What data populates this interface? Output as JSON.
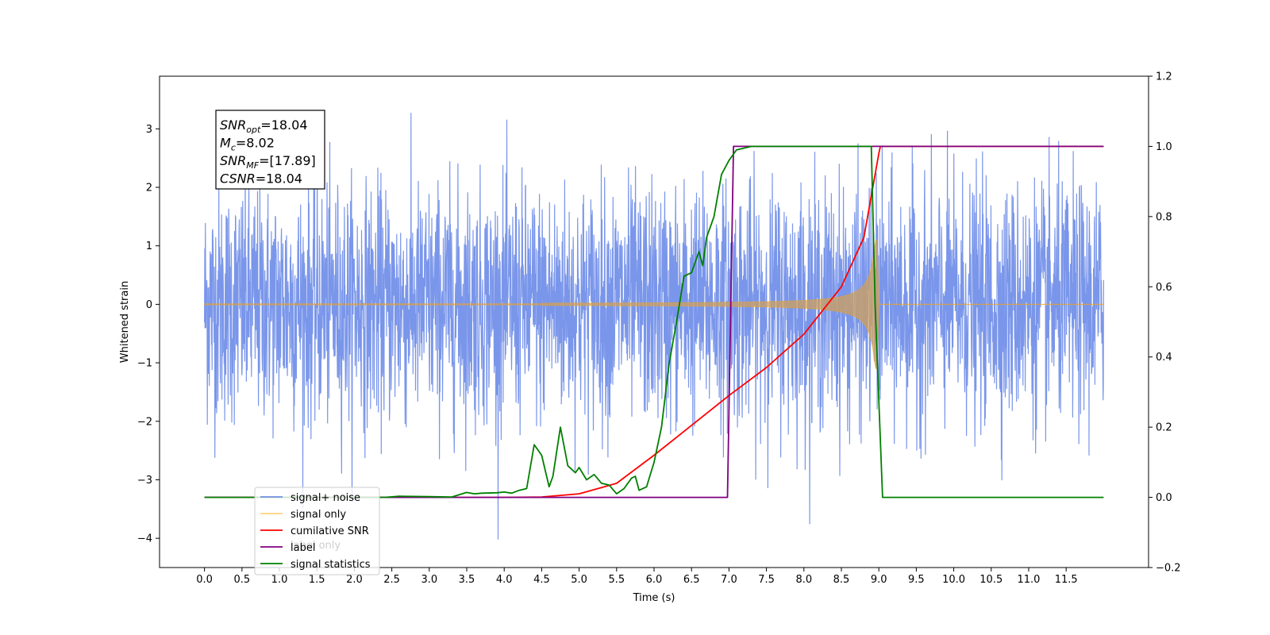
{
  "chart_data": {
    "type": "line",
    "xlabel": "Time (s)",
    "ylabel": "Whitened strain",
    "xlim": [
      -0.6,
      12.6
    ],
    "ylim": [
      -4.5,
      3.9
    ],
    "y2lim": [
      -0.2,
      1.2
    ],
    "x_ticks": [
      0.0,
      0.5,
      1.0,
      1.5,
      2.0,
      2.5,
      3.0,
      3.5,
      4.0,
      4.5,
      5.0,
      5.5,
      6.0,
      6.5,
      7.0,
      7.5,
      8.0,
      8.5,
      9.0,
      9.5,
      10.0,
      10.5,
      11.0,
      11.5
    ],
    "x_tick_labels": [
      "0.0",
      "0.5",
      "1.0",
      "1.5",
      "2.0",
      "2.5",
      "3.0",
      "3.5",
      "4.0",
      "4.5",
      "5.0",
      "5.5",
      "6.0",
      "6.5",
      "7.0",
      "7.5",
      "8.0",
      "8.5",
      "9.0",
      "9.5",
      "10.0",
      "10.5",
      "11.0",
      "11.5"
    ],
    "y_ticks": [
      -4,
      -3,
      -2,
      -1,
      0,
      1,
      2,
      3
    ],
    "y_tick_labels": [
      "−4",
      "−3",
      "−2",
      "−1",
      "0",
      "1",
      "2",
      "3"
    ],
    "y2_ticks": [
      -0.2,
      0.0,
      0.2,
      0.4,
      0.6,
      0.8,
      1.0,
      1.2
    ],
    "y2_tick_labels": [
      "−0.2",
      "0.0",
      "0.2",
      "0.4",
      "0.6",
      "0.8",
      "1.0",
      "1.2"
    ],
    "annotation": {
      "lines": [
        {
          "sym": "SNR",
          "sub": "opt",
          "value": "=18.04"
        },
        {
          "sym": "M",
          "sub": "c",
          "value": "=8.02"
        },
        {
          "sym": "SNR",
          "sub": "MF",
          "value": "=[17.89]"
        },
        {
          "sym": "CSNR",
          "sub": "",
          "value": "=18.04"
        }
      ]
    },
    "legend": {
      "placement": "lower-left",
      "ghost_text": "label only",
      "entries": [
        {
          "label": "signal+ noise",
          "color": "#4169E1"
        },
        {
          "label": "signal only",
          "color": "#FFA500"
        },
        {
          "label": "cumilative SNR",
          "color": "#FF0000"
        },
        {
          "label": "label",
          "color": "#800080"
        },
        {
          "label": "signal statistics",
          "color": "#008000"
        }
      ]
    },
    "series": [
      {
        "name": "signal+ noise",
        "axis": "left",
        "color": "#4169E1",
        "x_range": [
          0.0,
          12.0
        ],
        "envelope": "random noise, std ~1.0, spikes to ±3.6"
      },
      {
        "name": "signal only",
        "axis": "left",
        "color": "#FFA500",
        "x_range": [
          0.0,
          12.0
        ],
        "description": "chirp, amplitude grows to ~1.1 at x=9.0 then 0"
      },
      {
        "name": "cumilative SNR",
        "axis": "right",
        "x": [
          0.0,
          4.0,
          4.5,
          5.0,
          5.5,
          6.0,
          6.5,
          7.0,
          7.5,
          8.0,
          8.5,
          8.8,
          9.0,
          9.02,
          12.0
        ],
        "y": [
          0.0,
          0.0,
          0.001,
          0.01,
          0.04,
          0.12,
          0.205,
          0.29,
          0.37,
          0.465,
          0.6,
          0.74,
          0.98,
          1.0,
          1.0
        ]
      },
      {
        "name": "label",
        "axis": "right",
        "x": [
          0.0,
          6.98,
          7.06,
          9.0,
          9.02,
          12.0
        ],
        "y": [
          0.0,
          0.0,
          1.0,
          1.0,
          1.0,
          1.0
        ]
      },
      {
        "name": "signal statistics",
        "axis": "right",
        "x": [
          0.0,
          2.4,
          2.6,
          3.0,
          3.3,
          3.5,
          3.6,
          3.7,
          3.9,
          4.0,
          4.1,
          4.2,
          4.3,
          4.4,
          4.5,
          4.6,
          4.65,
          4.75,
          4.85,
          4.95,
          5.0,
          5.1,
          5.2,
          5.3,
          5.4,
          5.5,
          5.6,
          5.7,
          5.75,
          5.8,
          5.9,
          6.0,
          6.1,
          6.2,
          6.3,
          6.4,
          6.5,
          6.6,
          6.65,
          6.7,
          6.8,
          6.9,
          7.0,
          7.1,
          7.2,
          7.3,
          7.5,
          8.0,
          8.9,
          8.95,
          9.05,
          12.0
        ],
        "y": [
          0.0,
          0.0,
          0.003,
          0.002,
          0.001,
          0.014,
          0.01,
          0.012,
          0.013,
          0.015,
          0.012,
          0.02,
          0.025,
          0.15,
          0.12,
          0.03,
          0.06,
          0.2,
          0.09,
          0.07,
          0.085,
          0.05,
          0.065,
          0.04,
          0.035,
          0.01,
          0.025,
          0.055,
          0.06,
          0.02,
          0.03,
          0.1,
          0.2,
          0.38,
          0.5,
          0.63,
          0.64,
          0.7,
          0.66,
          0.74,
          0.8,
          0.92,
          0.96,
          0.99,
          0.995,
          1.0,
          1.0,
          1.0,
          1.0,
          0.55,
          0.0,
          0.0
        ]
      }
    ]
  }
}
